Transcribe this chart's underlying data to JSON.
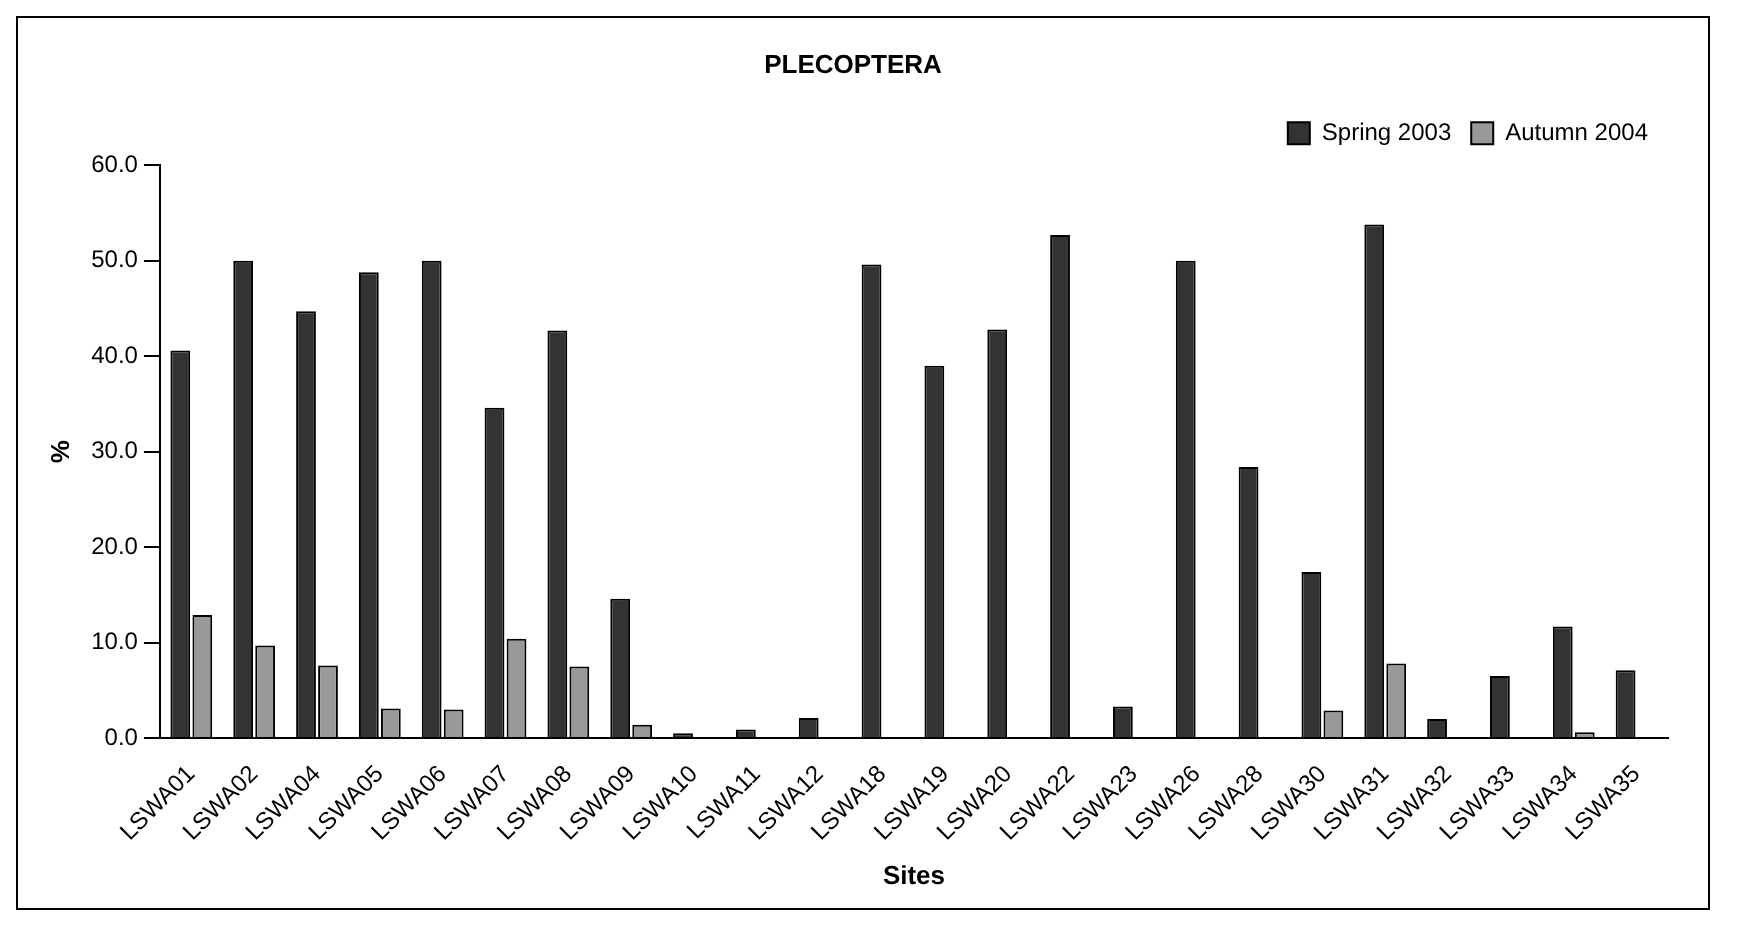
{
  "chart_data": {
    "type": "bar",
    "title": "PLECOPTERA",
    "xlabel": "Sites",
    "ylabel": "%",
    "categories": [
      "LSWA01",
      "LSWA02",
      "LSWA04",
      "LSWA05",
      "LSWA06",
      "LSWA07",
      "LSWA08",
      "LSWA09",
      "LSWA10",
      "LSWA11",
      "LSWA12",
      "LSWA18",
      "LSWA19",
      "LSWA20",
      "LSWA22",
      "LSWA23",
      "LSWA26",
      "LSWA28",
      "LSWA30",
      "LSWA31",
      "LSWA32",
      "LSWA33",
      "LSWA34",
      "LSWA35"
    ],
    "series": [
      {
        "name": "Spring 2003",
        "color": "#333333",
        "values": [
          40.6,
          50.0,
          44.7,
          48.8,
          50.0,
          34.6,
          42.7,
          14.6,
          0.5,
          0.9,
          2.1,
          49.6,
          39.0,
          42.8,
          52.7,
          3.3,
          50.0,
          28.4,
          17.4,
          53.8,
          2.0,
          6.5,
          11.7,
          7.1
        ]
      },
      {
        "name": "Autumn 2004",
        "color": "#999999",
        "values": [
          12.9,
          9.7,
          7.6,
          3.1,
          3.0,
          10.4,
          7.5,
          1.4,
          0,
          0,
          0,
          0,
          0,
          0,
          0,
          0,
          0,
          0,
          2.9,
          7.8,
          0,
          0,
          0.6,
          0
        ]
      }
    ],
    "ylim": [
      0,
      60
    ],
    "yticks": [
      {
        "value": 0,
        "label": "0.0"
      },
      {
        "value": 10,
        "label": "10.0"
      },
      {
        "value": 20,
        "label": "20.0"
      },
      {
        "value": 30,
        "label": "30.0"
      },
      {
        "value": 40,
        "label": "40.0"
      },
      {
        "value": 50,
        "label": "50.0"
      },
      {
        "value": 60,
        "label": "60.0"
      }
    ],
    "grid": false,
    "legend": "top right"
  }
}
